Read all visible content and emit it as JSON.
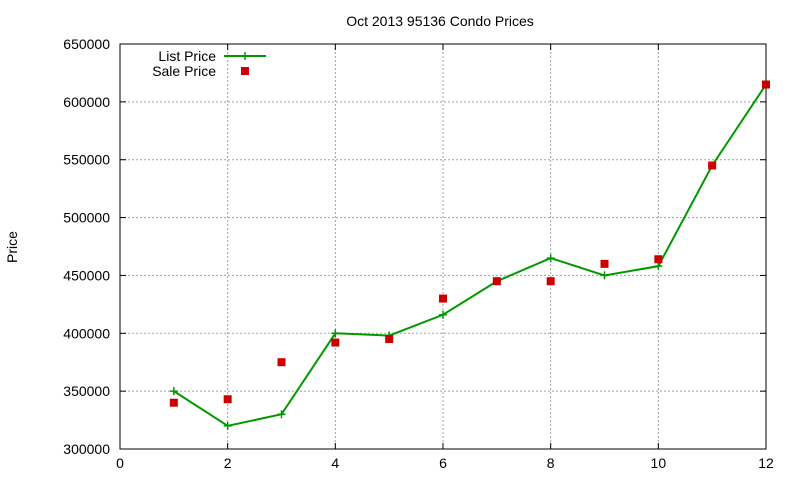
{
  "chart_data": {
    "type": "line",
    "title": "Oct 2013 95136 Condo Prices",
    "xlabel": "",
    "ylabel": "Price",
    "xlim": [
      0,
      12
    ],
    "ylim": [
      300000,
      650000
    ],
    "xticks": [
      "0",
      "2",
      "4",
      "6",
      "8",
      "10",
      "12"
    ],
    "yticks": [
      "300000",
      "350000",
      "400000",
      "450000",
      "500000",
      "550000",
      "600000",
      "650000"
    ],
    "grid": true,
    "legend_position": "top-left",
    "series": [
      {
        "name": "List Price",
        "style": "line+plus",
        "color": "#009900",
        "x": [
          1,
          2,
          3,
          4,
          5,
          6,
          7,
          8,
          9,
          10,
          11,
          12
        ],
        "values": [
          350000,
          320000,
          330000,
          400000,
          398000,
          416000,
          445000,
          465000,
          450000,
          458000,
          545000,
          615000
        ]
      },
      {
        "name": "Sale Price",
        "style": "square",
        "color": "#cc0000",
        "x": [
          1,
          2,
          3,
          4,
          5,
          6,
          7,
          8,
          9,
          10,
          11,
          12
        ],
        "values": [
          340000,
          343000,
          375000,
          392000,
          395000,
          430000,
          445000,
          445000,
          460000,
          464000,
          545000,
          615000
        ]
      }
    ]
  }
}
